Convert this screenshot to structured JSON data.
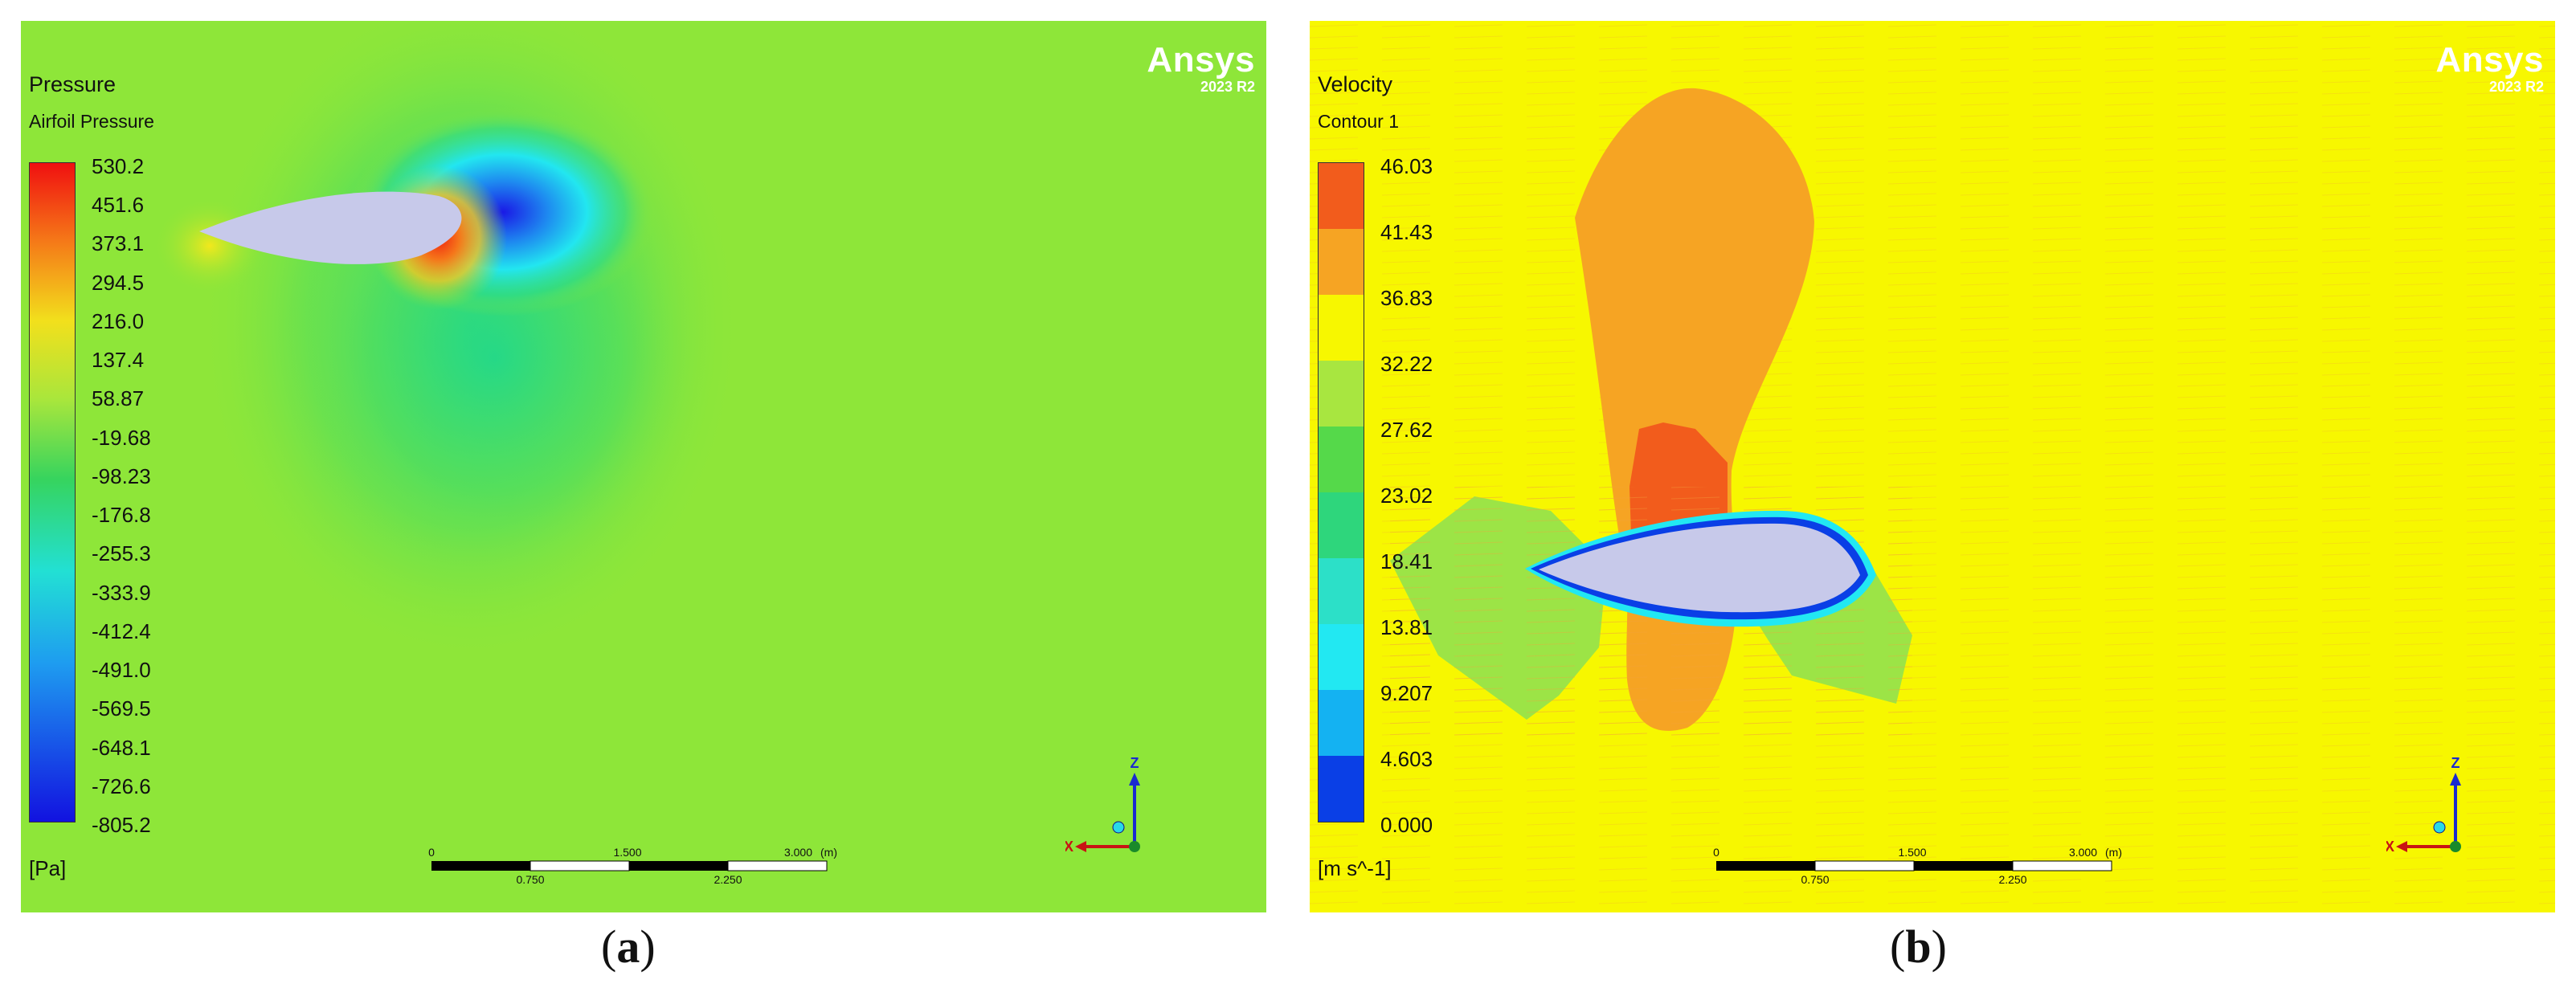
{
  "panel_a": {
    "title": "Pressure",
    "subtitle": "Airfoil Pressure",
    "unit": "[Pa]",
    "legend_values": [
      "530.2",
      "451.6",
      "373.1",
      "294.5",
      "216.0",
      "137.4",
      "58.87",
      "-19.68",
      "-98.23",
      "-176.8",
      "-255.3",
      "-333.9",
      "-412.4",
      "-491.0",
      "-569.5",
      "-648.1",
      "-726.6",
      "-805.2"
    ],
    "colors": {
      "field": "#8ee639",
      "airfoil": "#c7c9ea"
    },
    "logo": {
      "name": "Ansys",
      "version": "2023 R2"
    },
    "scale": {
      "top_labels": [
        "0",
        "1.500",
        "3.000",
        "(m)"
      ],
      "bottom_labels": [
        "0.750",
        "2.250"
      ]
    },
    "axes": {
      "z": "Z",
      "x": "X"
    },
    "caption": {
      "open": "(",
      "letter": "a",
      "close": ")"
    }
  },
  "panel_b": {
    "title": "Velocity",
    "subtitle": "Contour 1",
    "unit": "[m s^-1]",
    "legend_values": [
      "46.03",
      "41.43",
      "36.83",
      "32.22",
      "27.62",
      "23.02",
      "18.41",
      "13.81",
      "9.207",
      "4.603",
      "0.000"
    ],
    "legend_band_colors": [
      "#f25c1c",
      "#f6a423",
      "#f7f700",
      "#a8e640",
      "#55d94a",
      "#2ed67c",
      "#2ce0c8",
      "#22e8f2",
      "#14b2f2",
      "#0a78f0",
      "#0a3fe6"
    ],
    "colors": {
      "field": "#f7f700",
      "airfoil": "#c7c9ea"
    },
    "logo": {
      "name": "Ansys",
      "version": "2023 R2"
    },
    "scale": {
      "top_labels": [
        "0",
        "1.500",
        "3.000",
        "(m)"
      ],
      "bottom_labels": [
        "0.750",
        "2.250"
      ]
    },
    "axes": {
      "z": "Z",
      "x": "X"
    },
    "caption": {
      "open": "(",
      "letter": "b",
      "close": ")"
    }
  }
}
